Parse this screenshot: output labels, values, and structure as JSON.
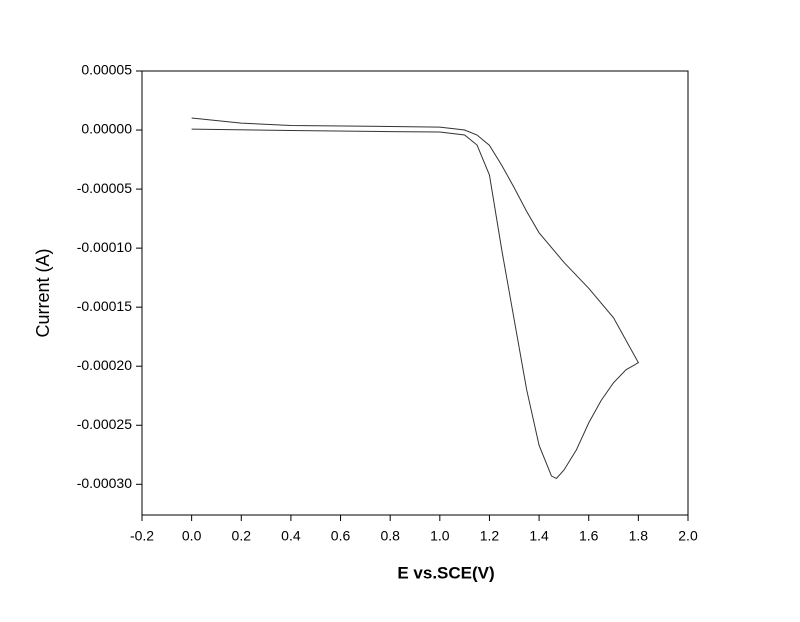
{
  "chart_data": {
    "type": "line",
    "x_label": "E vs.SCE(V)",
    "y_label": "Current (A)",
    "x": [
      0.0,
      0.4,
      0.8,
      1.0,
      1.1,
      1.15,
      1.2,
      1.25,
      1.3,
      1.35,
      1.4,
      1.45,
      1.47,
      1.5,
      1.55,
      1.6,
      1.65,
      1.7,
      1.75,
      1.8,
      1.75,
      1.7,
      1.6,
      1.5,
      1.4,
      1.35,
      1.3,
      1.25,
      1.2,
      1.15,
      1.1,
      1.0,
      0.8,
      0.4,
      0.2,
      0.0
    ],
    "series": [
      {
        "color": "#333333",
        "values": [
          8e-07,
          -4e-07,
          -1.3e-06,
          -1.7e-06,
          -4.2e-06,
          -1.27e-05,
          -3.81e-05,
          -0.000102,
          -0.000161,
          -0.00022,
          -0.000267,
          -0.000293,
          -0.000295,
          -0.000288,
          -0.000271,
          -0.000248,
          -0.000229,
          -0.000214,
          -0.000203,
          -0.000197,
          -0.000178,
          -0.000159,
          -0.000134,
          -0.000112,
          -8.7e-05,
          -6.9e-05,
          -4.9e-05,
          -3e-05,
          -1.3e-05,
          -4.2e-06,
          0,
          2.5e-06,
          3e-06,
          3.8e-06,
          5.9e-06,
          1.02e-05
        ]
      }
    ],
    "xlim": [
      -0.2,
      2.0
    ],
    "ylim": [
      -0.000326,
      5e-05
    ],
    "xticks": [
      {
        "value": -0.2,
        "label": "-0.2"
      },
      {
        "value": 0,
        "label": "0.0"
      },
      {
        "value": 0.2,
        "label": "0.2"
      },
      {
        "value": 0.4,
        "label": "0.4"
      },
      {
        "value": 0.6,
        "label": "0.6"
      },
      {
        "value": 0.8,
        "label": "0.8"
      },
      {
        "value": 1.0,
        "label": "1.0"
      },
      {
        "value": 1.2,
        "label": "1.2"
      },
      {
        "value": 1.4,
        "label": "1.4"
      },
      {
        "value": 1.6,
        "label": "1.6"
      },
      {
        "value": 1.8,
        "label": "1.8"
      },
      {
        "value": 2.0,
        "label": "2.0"
      }
    ],
    "yticks": [
      {
        "value": 5e-05,
        "label": "0.00005"
      },
      {
        "value": 0,
        "label": "0.00000"
      },
      {
        "value": -5e-05,
        "label": "-0.00005"
      },
      {
        "value": -0.0001,
        "label": "-0.00010"
      },
      {
        "value": -0.00015,
        "label": "-0.00015"
      },
      {
        "value": -0.0002,
        "label": "-0.00020"
      },
      {
        "value": -0.00025,
        "label": "-0.00025"
      },
      {
        "value": -0.0003,
        "label": "-0.00030"
      }
    ]
  }
}
